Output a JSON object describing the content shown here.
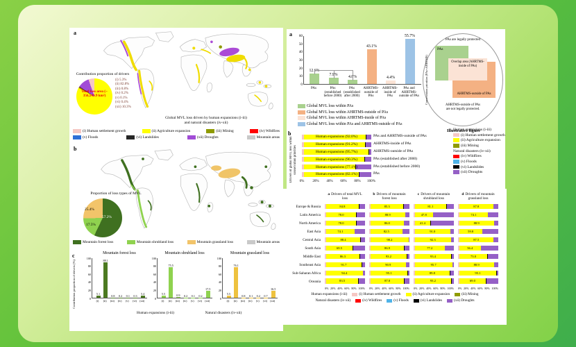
{
  "colors": {
    "background_green": "#82D148",
    "panel_white": "#FFFFFF",
    "value_text_red": "#7A3B2E",
    "total_loss_red": "#EE0000"
  },
  "stack_colors": {
    "human_settlement": "#F5C7C3",
    "agriculture": "#FFFF00",
    "landslides": "#000000",
    "droughts": "#9560C6"
  },
  "left_panel": {
    "label_a": "a",
    "label_b": "b",
    "label_c": "c",
    "map_a_caption_1": "Global MVL loss driven by human expansions (i-iii)",
    "map_a_caption_2": "and natural disasters (iv-xii)",
    "legend_a_row1": [
      {
        "swatch": "#F5C7C3",
        "text": "(i) Human settlement growth"
      },
      {
        "swatch": "#FFFF00",
        "text": "(ii) Agriculture expansion"
      },
      {
        "swatch": "#8F9B00",
        "text": "(iii) Mining"
      },
      {
        "swatch": "#FF0000",
        "text": "(iv) Wildfires"
      }
    ],
    "legend_a_row2": [
      {
        "swatch": "#2E6FD6",
        "text": "(v) Floods"
      },
      {
        "swatch": "#262626",
        "text": "(vi) Landslides"
      },
      {
        "swatch": "#A14CD6",
        "text": "(xii) Droughts"
      },
      {
        "swatch": "#C9C9C9",
        "text": "Mountain areas"
      }
    ],
    "legend_b": [
      {
        "swatch": "#3F7020",
        "text": "Mountain forest loss"
      },
      {
        "swatch": "#8FD24F",
        "text": "Mountain shrubland loss"
      },
      {
        "swatch": "#F2C46A",
        "text": "Mountain grassland loss"
      },
      {
        "swatch": "#C9C9C9",
        "text": "Mountain areas"
      }
    ],
    "part_c_group1": "Human expansions (i-iii)",
    "part_c_group2": "Natural disasters (iv-xii)"
  },
  "right_top": {
    "label_a": "a",
    "label_b": "b",
    "legend_a": [
      {
        "swatch": "#A9D18E",
        "text": "Global MVL loss within PAs"
      },
      {
        "swatch": "#F4B183",
        "text": "Global MVL loss within AHRTMS-outside of PAs"
      },
      {
        "swatch": "#FBE3D5",
        "text": "Global MVL loss within AHRTMS-inside of PAs"
      },
      {
        "swatch": "#9DC3E6",
        "text": "Global MVL loss within PAs and AHRTMS-outside of PAs"
      }
    ],
    "illustrative": {
      "top_text": "PAs are legally protected",
      "left_text": "Conservation priorities (PAs+AHRTMS)",
      "pas_label": "PAs",
      "overlap_label": "Overlap area (AHRTMS-inside of PAs)",
      "outside_label": "AHRTMS-outside of PAs",
      "bottom_text_1": "AHRTMS-outside of PAs",
      "bottom_text_2": "are not legally protected.",
      "caption": "Illustrative figure"
    },
    "legend_b": [
      {
        "header": "Human expansions (i-iii)"
      },
      {
        "swatch": "#F5C7C3",
        "text": "(i) Human settlement growth"
      },
      {
        "swatch": "#FFFF00",
        "text": "(ii) Agriculture expansion"
      },
      {
        "swatch": "#8F9B00",
        "text": "(iii) Mining"
      },
      {
        "header": "Natural disasters (iv-xii)"
      },
      {
        "swatch": "#FF0000",
        "text": "(iv) Wildfires"
      },
      {
        "swatch": "#4FB3E8",
        "text": "(v) Floods"
      },
      {
        "swatch": "#000000",
        "text": "(vi) Landslides"
      },
      {
        "swatch": "#9560C6",
        "text": "(xii) Droughts"
      }
    ]
  },
  "right_bottom": {
    "regions": [
      "Europe & Russia",
      "Latin America",
      "North America",
      "East Asia",
      "Central Asia",
      "South Asia",
      "Middle East",
      "Southeast Asia",
      "Sub-Saharan Africa",
      "Oceania"
    ],
    "xticks": [
      "0%",
      "20%",
      "40%",
      "60%",
      "80%",
      "100%"
    ],
    "legend_row1": [
      {
        "header": "Human expansions (i-iii)"
      },
      {
        "swatch": "#F5C7C3",
        "text": "(i) Human settlement growth"
      },
      {
        "swatch": "#FFFF00",
        "text": "(ii) Agriculture expansion"
      },
      {
        "swatch": "#8F9B00",
        "text": "(iii) Mining"
      }
    ],
    "legend_row2": [
      {
        "header": "Natural disasters (iv-xii)"
      },
      {
        "swatch": "#FF0000",
        "text": "(iv) Wildfires"
      },
      {
        "swatch": "#4FB3E8",
        "text": "(v) Floods"
      },
      {
        "swatch": "#000000",
        "text": "(vi) Landslides"
      },
      {
        "swatch": "#9560C6",
        "text": "(xii) Droughts"
      }
    ]
  },
  "chart_data": [
    {
      "id": "drivers_pie",
      "type": "pie",
      "title": "Contribution proportion of drivers",
      "center_label": "Total loss area (~ 356,549.9 km²)",
      "labels": [
        "(i) Human settlement growth",
        "(ii) Agriculture expansion",
        "(iii) Mining",
        "(iv) Wildfires",
        "(v) Floods",
        "(vi) Landslides",
        "(xii) Droughts"
      ],
      "values": [
        5.3,
        82.8,
        0.8,
        0.2,
        0.1,
        0.4,
        10.3
      ],
      "value_texts": [
        "(i) 5.3%",
        "(ii) 82.8%",
        "(iii) 0.8%",
        "(iv) 0.2%",
        "(v) 0.1%",
        "(vi) 0.4%",
        "(xii) 10.3%"
      ],
      "colors": [
        "#F5C7C3",
        "#FFFF00",
        "#8F9B00",
        "#FF0000",
        "#2E6FD6",
        "#262626",
        "#A14CD6"
      ],
      "render_order": [
        1,
        2,
        3,
        4,
        5,
        6,
        0
      ]
    },
    {
      "id": "loss_pie",
      "type": "pie",
      "title": "Proportion of loss types of MVL",
      "labels": [
        "Mountain forest loss",
        "Mountain shrubland loss",
        "Mountain grassland loss"
      ],
      "values": [
        57.2,
        17.5,
        25.4
      ],
      "value_texts": [
        "57.2%",
        "17.5%",
        "25.4%"
      ],
      "colors": [
        "#3F7020",
        "#8FD24F",
        "#F2C46A"
      ]
    },
    {
      "id": "forest_bar",
      "type": "bar",
      "title": "Mountain forest loss",
      "categories": [
        "(i)",
        "(ii)",
        "(iii)",
        "(iv)",
        "(v)",
        "(vi)",
        "(xii)"
      ],
      "values": [
        5.1,
        88.1,
        0.8,
        0.2,
        0.1,
        0.3,
        5.4
      ],
      "ylabel": "Contribution proportion of drivers (%)",
      "ylim": [
        0,
        100
      ],
      "yticks": [
        0,
        20,
        40,
        60,
        80,
        100
      ],
      "color": "#4C7A21"
    },
    {
      "id": "shrub_bar",
      "type": "bar",
      "title": "Mountain shrubland loss",
      "categories": [
        "(i)",
        "(ii)",
        "(iii)",
        "(iv)",
        "(v)",
        "(vi)",
        "(xii)"
      ],
      "values": [
        5.5,
        75.5,
        0.9,
        0.2,
        0.1,
        0.2,
        17.5
      ],
      "ylim": [
        0,
        100
      ],
      "yticks": [
        0,
        20,
        40,
        60,
        80,
        100
      ],
      "color": "#8FD24F"
    },
    {
      "id": "grass_bar",
      "type": "bar",
      "title": "Mountain grassland loss",
      "categories": [
        "(i)",
        "(ii)",
        "(iii)",
        "(iv)",
        "(v)",
        "(vi)",
        "(xii)"
      ],
      "values": [
        5.5,
        76.1,
        0.8,
        0.1,
        0.2,
        0.7,
        16.5
      ],
      "ylim": [
        0,
        100
      ],
      "yticks": [
        0,
        20,
        40,
        60,
        80,
        100
      ],
      "color": "#EEC23F"
    },
    {
      "id": "priority_share",
      "type": "bar",
      "categories": [
        [
          "PAs"
        ],
        [
          "PAs",
          "(established",
          "before 2000)"
        ],
        [
          "PAs",
          "(established",
          "after 2000)"
        ],
        [
          "AHRTMS-",
          "outside of",
          "PAs"
        ],
        [
          "AHRTMS-",
          "inside of",
          "PAs"
        ],
        [
          "PAs and",
          "AHRTMS-",
          "outside of PAs"
        ]
      ],
      "values": [
        12.6,
        7.9,
        4.8,
        43.1,
        4.4,
        55.7
      ],
      "value_texts": [
        "12.6%",
        "7.9%",
        "4.8%",
        "43.1%",
        "4.4%",
        "55.7%"
      ],
      "colors": [
        "#A9D18E",
        "#A9D18E",
        "#A9D18E",
        "#F4B183",
        "#FBE3D5",
        "#9DC3E6"
      ],
      "ylim": [
        0,
        60
      ],
      "yticks": [
        0,
        10,
        20,
        30,
        40,
        50,
        60
      ]
    },
    {
      "id": "priority_drivers",
      "type": "stacked_hbar",
      "ylabel": "Drivers of global MVL loss within conservation priorities",
      "xticks": [
        "0%",
        "20%",
        "40%",
        "60%",
        "80%",
        "100%"
      ],
      "rows": [
        {
          "bar_label": "Human expansions (92.0%)",
          "category": "PAs and AHRTMS-outside of PAs",
          "human_pct": 92.0
        },
        {
          "bar_label": "Human expansions (91.2%)",
          "category": "AHRTMS-inside of PAs",
          "human_pct": 91.2
        },
        {
          "bar_label": "Human expansions (95.7%)",
          "category": "AHRTMS-outside of PAs",
          "human_pct": 95.7
        },
        {
          "bar_label": "Human expansions (90.3%)",
          "category": "PAs (established after 2000)",
          "human_pct": 90.3
        },
        {
          "bar_label": "Human expansions (77.1%)",
          "category": "PAs (established before 2000)",
          "human_pct": 77.1
        },
        {
          "bar_label": "Human expansions (82.1%)",
          "category": "PAs",
          "human_pct": 82.1
        }
      ]
    },
    {
      "id": "regional_total",
      "type": "stacked_hbar",
      "panel_letter": "a",
      "title": "Drivers of total MVL loss",
      "human_pct": [
        84.8,
        78.0,
        78.0,
        74.1,
        88.4,
        69.5,
        86.3,
        91.7,
        94.4,
        83.5
      ]
    },
    {
      "id": "regional_forest",
      "type": "stacked_hbar",
      "panel_letter": "b",
      "title": "Drivers of mountain forest loss",
      "human_pct": [
        85.3,
        88.9,
        86.0,
        82.5,
        98.2,
        86.9,
        93.2,
        90.9,
        95.1,
        87.0
      ]
    },
    {
      "id": "regional_shrubland",
      "type": "stacked_hbar",
      "panel_letter": "c",
      "title": "Drivers of mountain shrubland loss",
      "human_pct": [
        81.1,
        47.8,
        41.4,
        91.0,
        92.3,
        77.2,
        93.4,
        95.7,
        89.8,
        93.2
      ]
    },
    {
      "id": "regional_grassland",
      "type": "stacked_hbar",
      "panel_letter": "d",
      "title": "Drivers of mountain grassland loss",
      "human_pct": [
        87.8,
        74.1,
        88.9,
        59.8,
        87.5,
        56.4,
        73.0,
        88.9,
        95.1,
        69.0
      ]
    }
  ]
}
